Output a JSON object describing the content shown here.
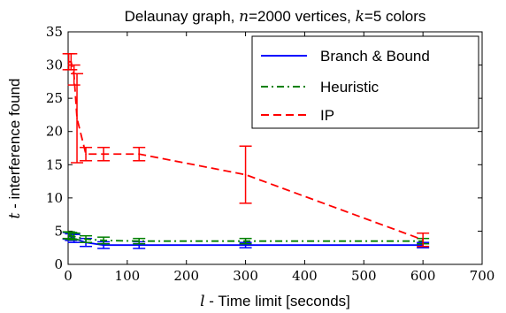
{
  "chart_data": {
    "type": "line",
    "title_prefix": "Delaunay graph,",
    "title_n_var": "n",
    "title_n_rest": "=2000 vertices,",
    "title_k_var": "k",
    "title_k_rest": "=5 colors",
    "xlabel_var": "l",
    "xlabel_rest": "- Time limit [seconds]",
    "ylabel_var": "t",
    "ylabel_rest": "- interference found",
    "xlim": [
      0,
      700
    ],
    "ylim": [
      0,
      35
    ],
    "x_ticks": [
      0,
      100,
      200,
      300,
      400,
      500,
      600,
      700
    ],
    "y_ticks": [
      0,
      5,
      10,
      15,
      20,
      25,
      30,
      35
    ],
    "grid": false,
    "legend_position": "top-right",
    "series": [
      {
        "name": "Branch & Bound",
        "color": "#0000ff",
        "dash": "solid",
        "points": [
          {
            "x": 1,
            "y": 4.3,
            "err": 0.5
          },
          {
            "x": 5,
            "y": 4.1,
            "err": 0.5
          },
          {
            "x": 10,
            "y": 3.9,
            "err": 0.6
          },
          {
            "x": 30,
            "y": 3.3,
            "err": 0.6
          },
          {
            "x": 60,
            "y": 2.9,
            "err": 0.5
          },
          {
            "x": 120,
            "y": 2.9,
            "err": 0.5
          },
          {
            "x": 300,
            "y": 2.9,
            "err": 0.4
          },
          {
            "x": 600,
            "y": 2.9,
            "err": 0.4
          }
        ]
      },
      {
        "name": "Heuristic",
        "color": "#008000",
        "dash": "dashdot",
        "points": [
          {
            "x": 1,
            "y": 4.4,
            "err": 0.5
          },
          {
            "x": 5,
            "y": 4.3,
            "err": 0.5
          },
          {
            "x": 10,
            "y": 4.2,
            "err": 0.5
          },
          {
            "x": 30,
            "y": 3.8,
            "err": 0.5
          },
          {
            "x": 60,
            "y": 3.6,
            "err": 0.5
          },
          {
            "x": 120,
            "y": 3.5,
            "err": 0.4
          },
          {
            "x": 300,
            "y": 3.5,
            "err": 0.4
          },
          {
            "x": 600,
            "y": 3.5,
            "err": 0.4
          }
        ]
      },
      {
        "name": "IP",
        "color": "#ff0000",
        "dash": "dashed",
        "points": [
          {
            "x": 1,
            "y": 30.5,
            "err": 1.2
          },
          {
            "x": 5,
            "y": 30.5,
            "err": 1.2
          },
          {
            "x": 10,
            "y": 28.5,
            "err": 1.5
          },
          {
            "x": 15,
            "y": 22,
            "err": 6.7
          },
          {
            "x": 30,
            "y": 16.6,
            "err": 1.0
          },
          {
            "x": 60,
            "y": 16.6,
            "err": 1.0
          },
          {
            "x": 120,
            "y": 16.6,
            "err": 1.0
          },
          {
            "x": 300,
            "y": 13.5,
            "err": 4.3
          },
          {
            "x": 600,
            "y": 3.7,
            "err": 1.0
          }
        ]
      }
    ]
  }
}
